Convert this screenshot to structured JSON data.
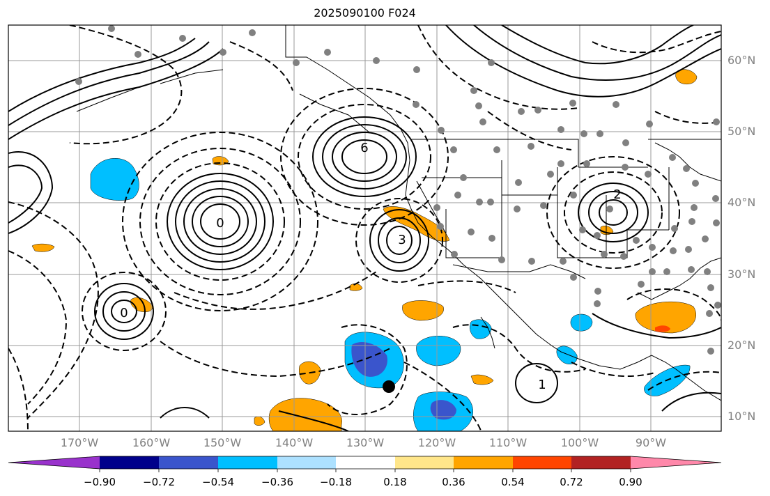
{
  "map": {
    "title": "2025090100 F024",
    "lat_labels": [
      "60°N",
      "50°N",
      "40°N",
      "30°N",
      "20°N",
      "10°N"
    ],
    "lon_labels": [
      "170°W",
      "160°W",
      "150°W",
      "140°W",
      "130°W",
      "120°W",
      "110°W",
      "100°W",
      "90°W"
    ],
    "contour_labels": {
      "northeast_pacific_high": "6",
      "central_pacific_low": "0",
      "west_pacific_low": "0",
      "baja_low": "3",
      "us_highs": "2",
      "central_america_high": "1"
    },
    "marker": "storm-center"
  },
  "colorbar": {
    "labels": [
      "−0.90",
      "−0.72",
      "−0.54",
      "−0.36",
      "−0.18",
      "0.18",
      "0.36",
      "0.54",
      "0.72",
      "0.90"
    ],
    "colors": [
      "#9932CC",
      "#00008B",
      "#3A55CC",
      "#00BFFF",
      "#ADE1FF",
      "#FFFFFF",
      "#FFE68A",
      "#FFA500",
      "#FF4500",
      "#B22222",
      "#FF88AA"
    ],
    "extend": "both"
  }
}
